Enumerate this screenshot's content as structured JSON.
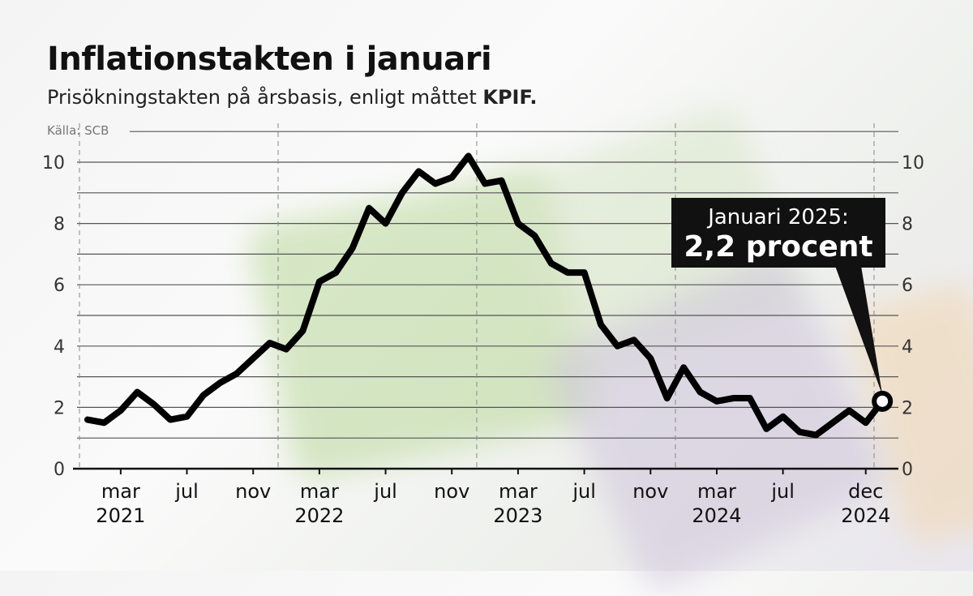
{
  "title": "Inflationstakten i januari",
  "subtitle_prefix": "Prisökningstakten på årsbasis, enligt måttet ",
  "subtitle_bold": "KPIF.",
  "source": "Källa: SCB",
  "annotation": {
    "line1": "Januari 2025:",
    "line2": "2,2 procent"
  },
  "colors": {
    "line": "#000000",
    "grid": "#555555",
    "annotation_bg": "#111111",
    "annotation_text": "#ffffff"
  },
  "chart_data": {
    "type": "line",
    "title": "Inflationstakten i januari",
    "ylim": [
      0,
      11
    ],
    "yticks": [
      0,
      2,
      4,
      6,
      8,
      10
    ],
    "ytick_labels": [
      "0",
      "2",
      "4",
      "6",
      "8",
      "10"
    ],
    "grid": true,
    "y_axis_both_sides": true,
    "x_tick_labels": [
      {
        "month": "mar",
        "year": "2021",
        "x": "2021-03"
      },
      {
        "month": "jul",
        "year": "",
        "x": "2021-07"
      },
      {
        "month": "nov",
        "year": "",
        "x": "2021-11"
      },
      {
        "month": "mar",
        "year": "2022",
        "x": "2022-03"
      },
      {
        "month": "jul",
        "year": "",
        "x": "2022-07"
      },
      {
        "month": "nov",
        "year": "",
        "x": "2022-11"
      },
      {
        "month": "mar",
        "year": "2023",
        "x": "2023-03"
      },
      {
        "month": "jul",
        "year": "",
        "x": "2023-07"
      },
      {
        "month": "nov",
        "year": "",
        "x": "2023-11"
      },
      {
        "month": "mar",
        "year": "2024",
        "x": "2024-03"
      },
      {
        "month": "jul",
        "year": "",
        "x": "2024-07"
      },
      {
        "month": "dec",
        "year": "2024",
        "x": "2024-12"
      }
    ],
    "x": [
      "2021-01",
      "2021-02",
      "2021-03",
      "2021-04",
      "2021-05",
      "2021-06",
      "2021-07",
      "2021-08",
      "2021-09",
      "2021-10",
      "2021-11",
      "2021-12",
      "2022-01",
      "2022-02",
      "2022-03",
      "2022-04",
      "2022-05",
      "2022-06",
      "2022-07",
      "2022-08",
      "2022-09",
      "2022-10",
      "2022-11",
      "2022-12",
      "2023-01",
      "2023-02",
      "2023-03",
      "2023-04",
      "2023-05",
      "2023-06",
      "2023-07",
      "2023-08",
      "2023-09",
      "2023-10",
      "2023-11",
      "2023-12",
      "2024-01",
      "2024-02",
      "2024-03",
      "2024-04",
      "2024-05",
      "2024-06",
      "2024-07",
      "2024-08",
      "2024-09",
      "2024-10",
      "2024-11",
      "2024-12",
      "2025-01"
    ],
    "values": [
      1.6,
      1.5,
      1.9,
      2.5,
      2.1,
      1.6,
      1.7,
      2.4,
      2.8,
      3.1,
      3.6,
      4.1,
      3.9,
      4.5,
      6.1,
      6.4,
      7.2,
      8.5,
      8.0,
      9.0,
      9.7,
      9.3,
      9.5,
      10.2,
      9.3,
      9.4,
      8.0,
      7.6,
      6.7,
      6.4,
      6.4,
      4.7,
      4.0,
      4.2,
      3.6,
      2.3,
      3.3,
      2.5,
      2.2,
      2.3,
      2.3,
      1.3,
      1.7,
      1.2,
      1.1,
      1.5,
      1.9,
      1.5,
      2.2
    ]
  }
}
